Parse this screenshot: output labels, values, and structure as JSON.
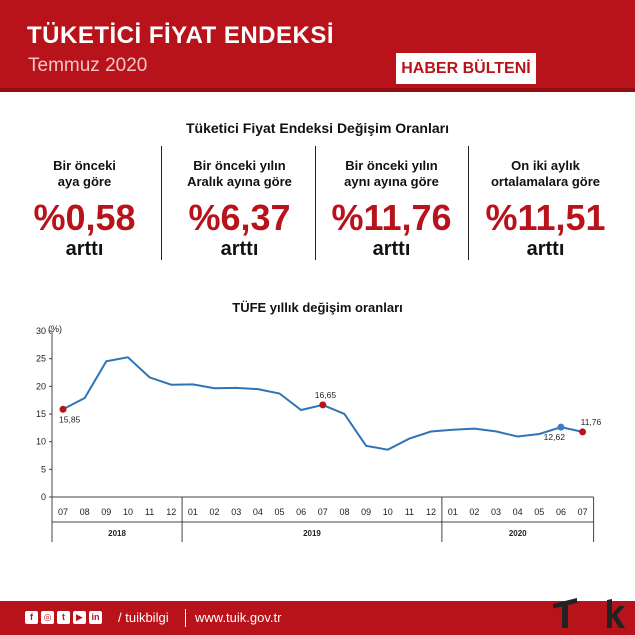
{
  "header": {
    "title": "TÜKETİCİ FİYAT ENDEKSİ",
    "subtitle": "Temmuz 2020",
    "badge": "HABER BÜLTENİ"
  },
  "stats": {
    "title": "Tüketici Fiyat Endeksi Değişim Oranları",
    "items": [
      {
        "label1": "Bir önceki",
        "label2": "aya göre",
        "value": "%0,58",
        "note": "arttı"
      },
      {
        "label1": "Bir önceki yılın",
        "label2": "Aralık ayına göre",
        "value": "%6,37",
        "note": "arttı"
      },
      {
        "label1": "Bir önceki yılın",
        "label2": "aynı ayına göre",
        "value": "%11,76",
        "note": "arttı"
      },
      {
        "label1": "On iki aylık",
        "label2": "ortalamalara göre",
        "value": "%11,51",
        "note": "arttı"
      }
    ]
  },
  "chart_data": {
    "type": "line",
    "title": "TÜFE yıllık değişim oranları",
    "ylabel": "(%)",
    "ylim": [
      0,
      30
    ],
    "yticks": [
      0,
      5,
      10,
      15,
      20,
      25,
      30
    ],
    "categories": [
      "07",
      "08",
      "09",
      "10",
      "11",
      "12",
      "01",
      "02",
      "03",
      "04",
      "05",
      "06",
      "07",
      "08",
      "09",
      "10",
      "11",
      "12",
      "01",
      "02",
      "03",
      "04",
      "05",
      "06",
      "07"
    ],
    "year_groups": [
      {
        "label": "2018",
        "count": 6
      },
      {
        "label": "2019",
        "count": 12
      },
      {
        "label": "2020",
        "count": 7
      }
    ],
    "values": [
      15.85,
      17.9,
      24.52,
      25.24,
      21.62,
      20.3,
      20.35,
      19.67,
      19.71,
      19.5,
      18.71,
      15.72,
      16.65,
      15.01,
      9.26,
      8.55,
      10.56,
      11.84,
      12.15,
      12.37,
      11.86,
      10.94,
      11.39,
      12.62,
      11.76
    ],
    "highlights": [
      {
        "index": 0,
        "label": "15,85",
        "color": "#b8131b"
      },
      {
        "index": 12,
        "label": "16,65",
        "color": "#b8131b"
      },
      {
        "index": 23,
        "label": "12,62",
        "color": "#3a7bc8"
      },
      {
        "index": 24,
        "label": "11,76",
        "color": "#b8131b"
      }
    ],
    "line_color": "#2e75b6",
    "grid": false
  },
  "footer": {
    "social_icons": [
      "facebook-icon",
      "instagram-icon",
      "twitter-icon",
      "youtube-icon",
      "linkedin-icon"
    ],
    "handle": "/ tuikbilgi",
    "website": "www.tuik.gov.tr"
  }
}
